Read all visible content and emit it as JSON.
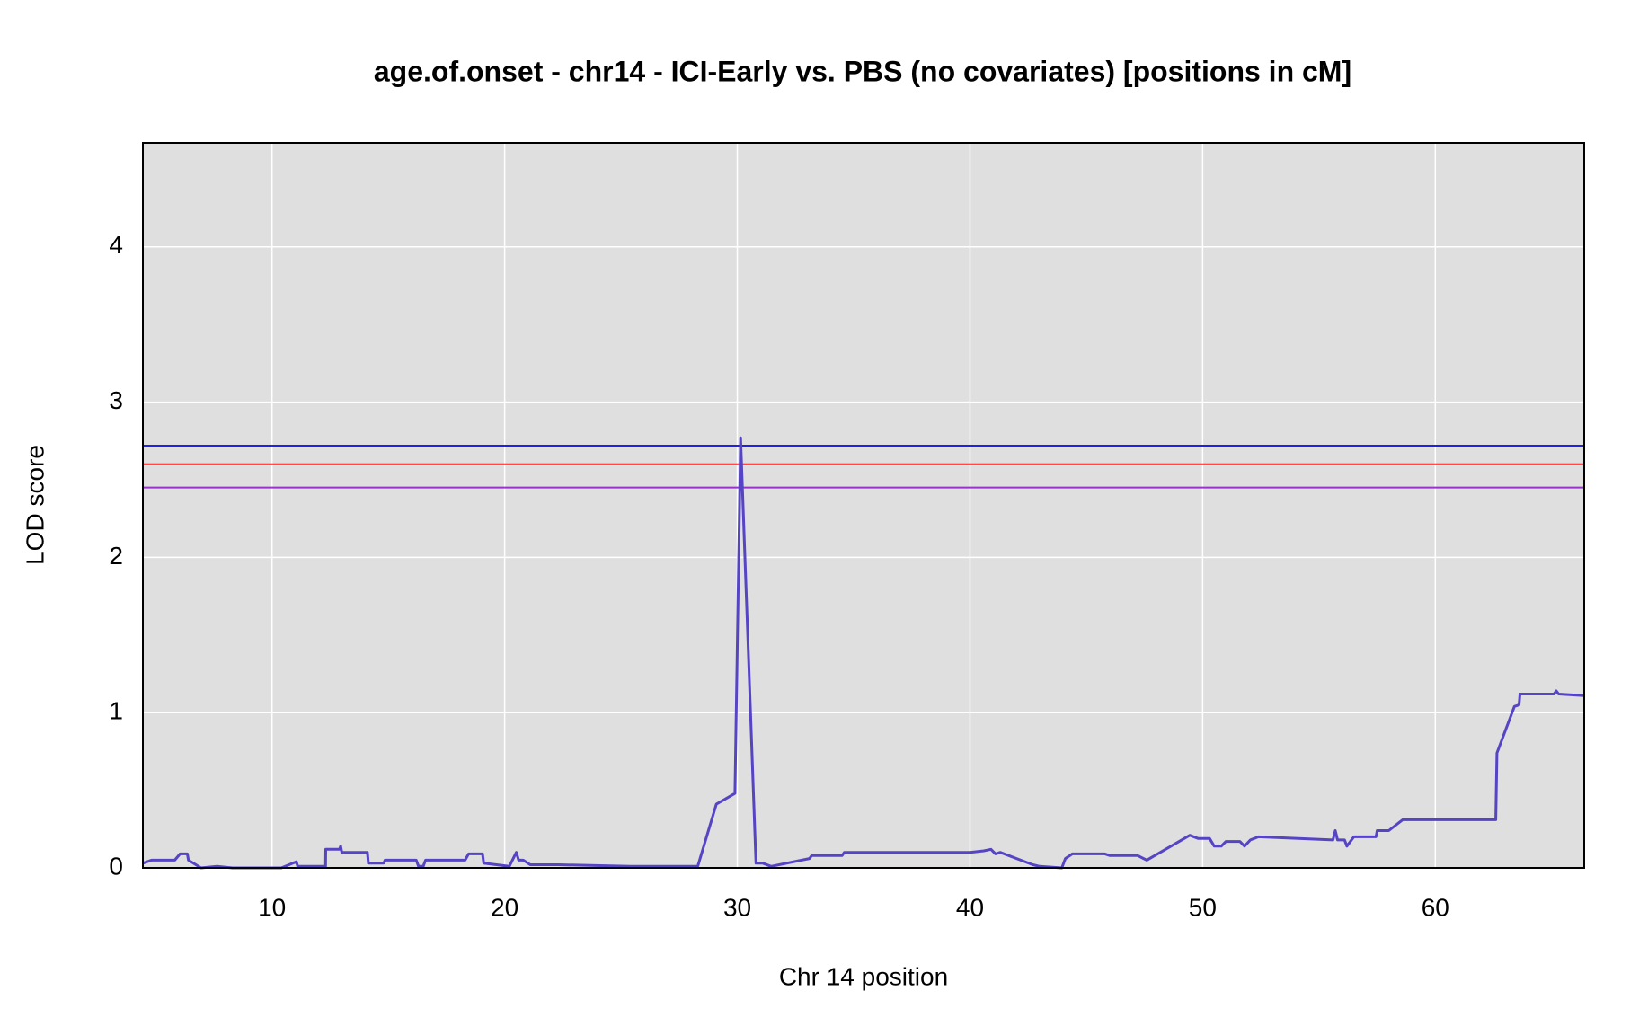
{
  "chart_data": {
    "type": "line",
    "title": "age.of.onset - chr14 - ICI-Early vs. PBS (no covariates) [positions in cM]",
    "x_label": "Chr 14 position",
    "y_label": "LOD score",
    "xlim": [
      4.45,
      66.4
    ],
    "ylim": [
      0,
      4.67
    ],
    "xticks": [
      10,
      20,
      30,
      40,
      50,
      60
    ],
    "yticks": [
      0,
      1,
      2,
      3,
      4
    ],
    "grid": true,
    "x": [
      4.45,
      4.82,
      5.82,
      6.05,
      6.36,
      6.41,
      6.95,
      7.64,
      8.3,
      10.4,
      11.05,
      11.1,
      12.3,
      12.31,
      12.9,
      12.95,
      13.0,
      14.1,
      14.14,
      14.8,
      14.86,
      16.2,
      16.3,
      16.5,
      16.6,
      18.3,
      18.45,
      19.05,
      19.1,
      20.2,
      20.5,
      20.6,
      20.8,
      21.1,
      22.3,
      25.4,
      26.7,
      28.3,
      29.1,
      29.9,
      30.14,
      30.8,
      31.1,
      31.45,
      33.1,
      33.2,
      34.5,
      34.6,
      37.2,
      40.0,
      40.6,
      40.9,
      41.1,
      41.3,
      42.7,
      43.0,
      43.95,
      44.1,
      44.4,
      45.8,
      46.0,
      47.2,
      47.6,
      49.45,
      49.8,
      50.3,
      50.5,
      50.8,
      51.0,
      51.6,
      51.8,
      52.05,
      52.4,
      55.6,
      55.7,
      55.8,
      56.1,
      56.2,
      56.5,
      57.45,
      57.5,
      58.0,
      58.6,
      62.6,
      62.65,
      63.4,
      63.6,
      63.64,
      65.1,
      65.2,
      65.3,
      66.4
    ],
    "series": [
      {
        "color": "#5544c4",
        "values": [
          0.03,
          0.05,
          0.05,
          0.09,
          0.09,
          0.05,
          0,
          0.01,
          0,
          0,
          0.04,
          0.01,
          0.01,
          0.12,
          0.12,
          0.14,
          0.1,
          0.1,
          0.03,
          0.03,
          0.05,
          0.05,
          0.01,
          0.01,
          0.05,
          0.05,
          0.09,
          0.09,
          0.03,
          0.01,
          0.1,
          0.05,
          0.05,
          0.02,
          0.02,
          0.01,
          0.01,
          0.01,
          0.41,
          0.48,
          2.77,
          0.03,
          0.03,
          0.01,
          0.06,
          0.08,
          0.08,
          0.1,
          0.1,
          0.1,
          0.11,
          0.12,
          0.09,
          0.1,
          0.02,
          0.01,
          0,
          0.06,
          0.09,
          0.09,
          0.08,
          0.08,
          0.05,
          0.21,
          0.19,
          0.19,
          0.14,
          0.14,
          0.17,
          0.17,
          0.14,
          0.18,
          0.2,
          0.18,
          0.24,
          0.18,
          0.18,
          0.14,
          0.2,
          0.2,
          0.24,
          0.24,
          0.31,
          0.31,
          0.74,
          1.04,
          1.05,
          1.12,
          1.12,
          1.14,
          1.12,
          1.11
        ]
      }
    ],
    "thresholds": [
      {
        "value": 2.72,
        "color": "#2222dd"
      },
      {
        "value": 2.6,
        "color": "#ee2222"
      },
      {
        "value": 2.45,
        "color": "#9933cc"
      }
    ]
  }
}
